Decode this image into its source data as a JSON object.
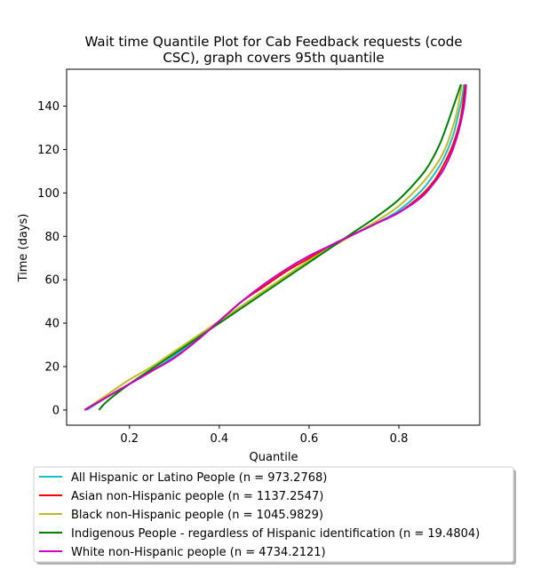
{
  "chart_data": {
    "type": "line",
    "title_lines": [
      "Wait time Quantile Plot for Cab Feedback  requests (code",
      "CSC), graph covers 95th quantile"
    ],
    "xlabel": "Quantile",
    "ylabel": "Time (days)",
    "xlim": [
      0.06,
      0.98
    ],
    "ylim": [
      -7,
      157
    ],
    "x_ticks": [
      0.2,
      0.4,
      0.6,
      0.8
    ],
    "x_tick_labels": [
      "0.2",
      "0.4",
      "0.6",
      "0.8"
    ],
    "y_ticks": [
      0,
      20,
      40,
      60,
      80,
      100,
      120,
      140
    ],
    "y_tick_labels": [
      "0",
      "20",
      "40",
      "60",
      "80",
      "100",
      "120",
      "140"
    ],
    "grid": false,
    "legend_position": "below",
    "series": [
      {
        "name": "All Hispanic or Latino People (n = 973.2768)",
        "color": "#17becf",
        "x": [
          0.105,
          0.15,
          0.2,
          0.25,
          0.3,
          0.35,
          0.4,
          0.45,
          0.5,
          0.55,
          0.6,
          0.65,
          0.7,
          0.75,
          0.8,
          0.85,
          0.88,
          0.9,
          0.92,
          0.93,
          0.94,
          0.945
        ],
        "y": [
          0,
          6,
          12,
          18,
          25,
          33,
          41,
          50,
          57,
          64,
          70,
          76,
          81,
          86,
          92,
          101,
          109,
          116,
          126,
          134,
          143,
          150
        ]
      },
      {
        "name": "Asian non-Hispanic people (n = 1137.2547)",
        "color": "#ff0000",
        "x": [
          0.1,
          0.15,
          0.2,
          0.25,
          0.3,
          0.35,
          0.4,
          0.45,
          0.5,
          0.55,
          0.6,
          0.65,
          0.7,
          0.75,
          0.8,
          0.85,
          0.88,
          0.9,
          0.92,
          0.935,
          0.942,
          0.948
        ],
        "y": [
          0,
          6,
          12,
          18,
          24,
          32,
          41,
          50,
          57,
          64,
          70,
          76,
          81,
          86,
          91,
          99,
          106,
          113,
          122,
          132,
          140,
          150
        ]
      },
      {
        "name": "Black non-Hispanic people (n = 1045.9829)",
        "color": "#bcbd22",
        "x": [
          0.1,
          0.15,
          0.2,
          0.25,
          0.3,
          0.35,
          0.4,
          0.45,
          0.5,
          0.55,
          0.6,
          0.65,
          0.7,
          0.75,
          0.8,
          0.85,
          0.88,
          0.9,
          0.915,
          0.93,
          0.94
        ],
        "y": [
          0,
          7,
          14,
          20,
          27,
          34,
          41,
          48,
          55,
          62,
          69,
          75,
          81,
          87,
          94,
          104,
          112,
          119,
          127,
          138,
          150
        ]
      },
      {
        "name": "Indigenous People - regardless of Hispanic identification (n = 19.4804)",
        "color": "#008000",
        "x": [
          0.132,
          0.15,
          0.2,
          0.25,
          0.3,
          0.35,
          0.4,
          0.45,
          0.5,
          0.55,
          0.6,
          0.65,
          0.7,
          0.75,
          0.8,
          0.85,
          0.87,
          0.89,
          0.905,
          0.92,
          0.93,
          0.938
        ],
        "y": [
          0,
          4,
          12,
          19,
          26,
          33,
          40,
          47,
          54,
          61,
          68,
          75,
          82,
          89,
          97,
          108,
          114,
          122,
          130,
          139,
          145,
          150
        ]
      },
      {
        "name": "White non-Hispanic people (n = 4734.2121)",
        "color": "#c800c8",
        "x": [
          0.1,
          0.15,
          0.2,
          0.25,
          0.3,
          0.35,
          0.4,
          0.45,
          0.5,
          0.55,
          0.6,
          0.65,
          0.7,
          0.75,
          0.8,
          0.85,
          0.88,
          0.9,
          0.92,
          0.935,
          0.945,
          0.95
        ],
        "y": [
          0,
          6,
          12,
          18,
          24,
          32,
          41,
          50,
          58,
          65,
          71,
          76,
          81,
          86,
          91,
          98,
          105,
          111,
          120,
          130,
          140,
          150
        ]
      }
    ]
  }
}
